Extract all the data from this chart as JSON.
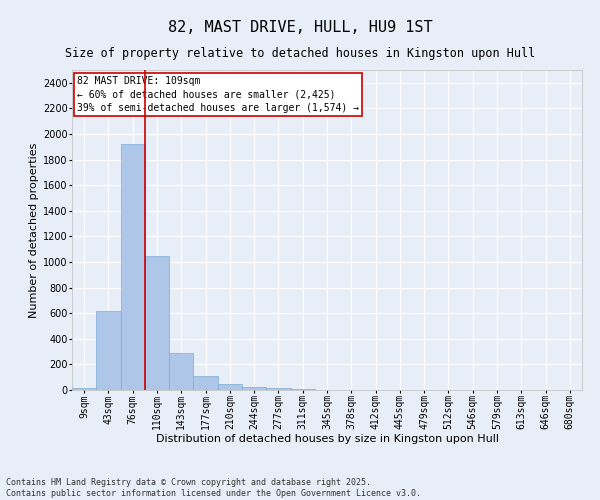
{
  "title": "82, MAST DRIVE, HULL, HU9 1ST",
  "subtitle": "Size of property relative to detached houses in Kingston upon Hull",
  "xlabel": "Distribution of detached houses by size in Kingston upon Hull",
  "ylabel": "Number of detached properties",
  "bar_color": "#aec6e8",
  "bar_edge_color": "#7aadd4",
  "background_color": "#e8eef8",
  "grid_color": "#ffffff",
  "categories": [
    "9sqm",
    "43sqm",
    "76sqm",
    "110sqm",
    "143sqm",
    "177sqm",
    "210sqm",
    "244sqm",
    "277sqm",
    "311sqm",
    "345sqm",
    "378sqm",
    "412sqm",
    "445sqm",
    "479sqm",
    "512sqm",
    "546sqm",
    "579sqm",
    "613sqm",
    "646sqm",
    "680sqm"
  ],
  "values": [
    15,
    620,
    1920,
    1050,
    290,
    110,
    45,
    25,
    15,
    5,
    2,
    1,
    0,
    0,
    0,
    0,
    0,
    0,
    0,
    0,
    0
  ],
  "ylim": [
    0,
    2500
  ],
  "yticks": [
    0,
    200,
    400,
    600,
    800,
    1000,
    1200,
    1400,
    1600,
    1800,
    2000,
    2200,
    2400
  ],
  "property_label": "82 MAST DRIVE: 109sqm",
  "annotation_line1": "← 60% of detached houses are smaller (2,425)",
  "annotation_line2": "39% of semi-detached houses are larger (1,574) →",
  "vline_x_index": 2.5,
  "annotation_box_color": "#ffffff",
  "annotation_border_color": "#cc0000",
  "footer_line1": "Contains HM Land Registry data © Crown copyright and database right 2025.",
  "footer_line2": "Contains public sector information licensed under the Open Government Licence v3.0.",
  "title_fontsize": 11,
  "subtitle_fontsize": 8.5,
  "axis_label_fontsize": 8,
  "tick_fontsize": 7,
  "annotation_fontsize": 7,
  "footer_fontsize": 6
}
